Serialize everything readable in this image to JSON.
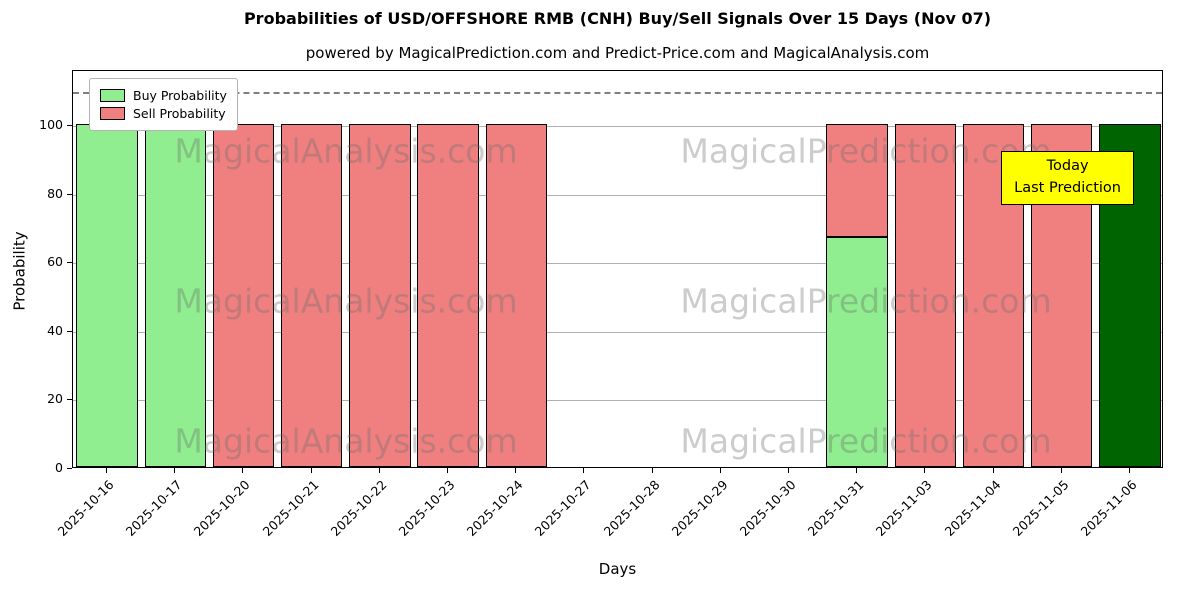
{
  "figure": {
    "title": "Probabilities of USD/OFFSHORE RMB (CNH) Buy/Sell Signals Over 15 Days (Nov 07)",
    "subtitle": "powered by MagicalPrediction.com and Predict-Price.com and MagicalAnalysis.com"
  },
  "legend": {
    "items": [
      {
        "label": "Buy Probability",
        "color": "#90ee90"
      },
      {
        "label": "Sell Probability",
        "color": "#f08080"
      }
    ]
  },
  "annotation": {
    "line1": "Today",
    "line2": "Last Prediction",
    "bg_color": "#ffff00"
  },
  "watermarks": {
    "left": "MagicalAnalysis.com",
    "right": "MagicalPrediction.com"
  },
  "chart_data": {
    "type": "bar",
    "stacked": true,
    "title": "Probabilities of USD/OFFSHORE RMB (CNH) Buy/Sell Signals Over 15 Days (Nov 07)",
    "xlabel": "Days",
    "ylabel": "Probability",
    "categories": [
      "2025-10-16",
      "2025-10-17",
      "2025-10-20",
      "2025-10-21",
      "2025-10-22",
      "2025-10-23",
      "2025-10-24",
      "2025-10-27",
      "2025-10-28",
      "2025-10-29",
      "2025-10-30",
      "2025-10-31",
      "2025-11-03",
      "2025-11-04",
      "2025-11-05",
      "2025-11-06"
    ],
    "series": [
      {
        "name": "Buy Probability",
        "color": "#90ee90",
        "values": [
          100,
          100,
          0,
          0,
          0,
          0,
          0,
          0,
          0,
          0,
          0,
          67,
          0,
          0,
          0,
          0
        ]
      },
      {
        "name": "Sell Probability",
        "color": "#f08080",
        "values": [
          0,
          0,
          100,
          100,
          100,
          100,
          100,
          0,
          0,
          0,
          0,
          33,
          100,
          100,
          100,
          0
        ]
      },
      {
        "name": "Today Last Prediction",
        "color": "#006400",
        "values": [
          0,
          0,
          0,
          0,
          0,
          0,
          0,
          0,
          0,
          0,
          0,
          0,
          0,
          0,
          0,
          100
        ]
      }
    ],
    "yticks": [
      0,
      20,
      40,
      60,
      80,
      100
    ],
    "ylim": [
      0,
      116
    ],
    "dashed_line_y": 110,
    "grid": true,
    "legend_position": "upper left"
  }
}
